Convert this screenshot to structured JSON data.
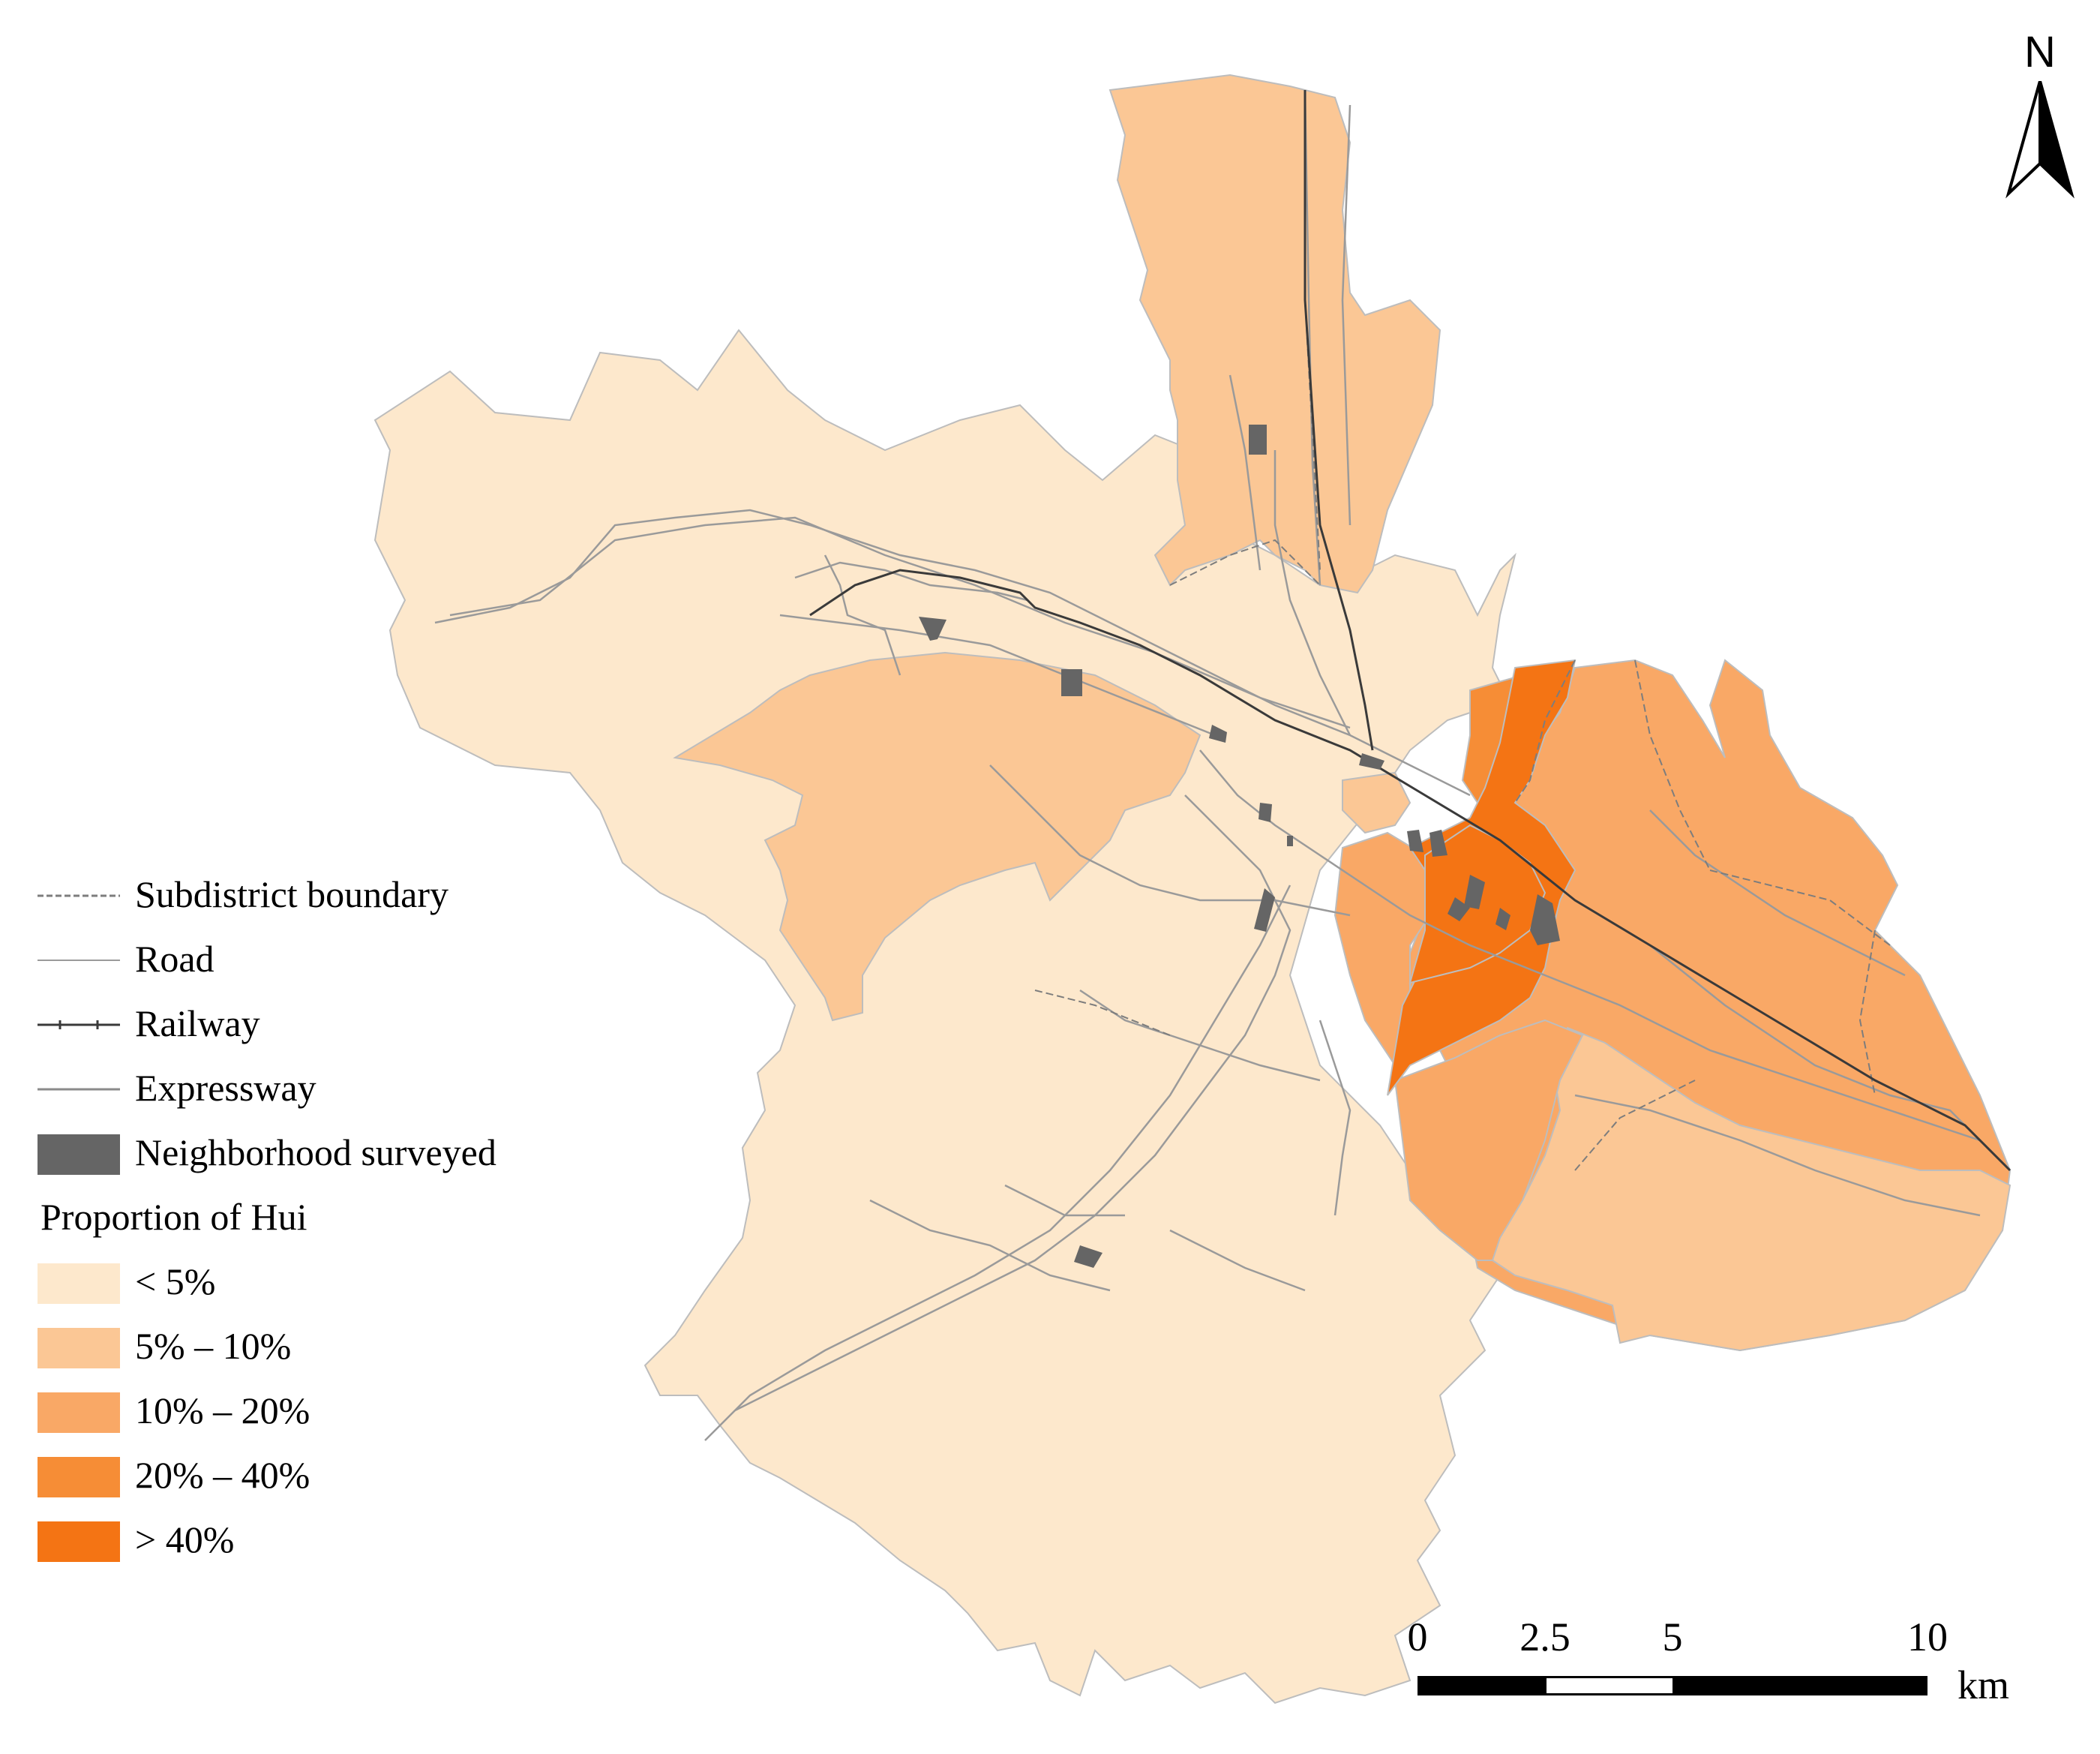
{
  "map": {
    "colors": {
      "lt5": "#fde8cc",
      "p5to10": "#fbc795",
      "p10to20": "#f9a866",
      "p20to40": "#f68d36",
      "gt40": "#f47414",
      "neighborhood": "#656565",
      "road": "#9a9a9a",
      "boundary": "#7d7d7d",
      "railway": "#3a3a3a"
    }
  },
  "legend": {
    "lines": [
      {
        "label": "Subdistrict boundary",
        "icon": "subdistrict-boundary-line"
      },
      {
        "label": "Road",
        "icon": "road-line"
      },
      {
        "label": "Railway",
        "icon": "railway-line"
      },
      {
        "label": "Expressway",
        "icon": "expressway-line"
      }
    ],
    "neighborhood": {
      "label": "Neighborhood surveyed",
      "color": "#656565"
    },
    "title": "Proportion of Hui",
    "classes": [
      {
        "label": "< 5%",
        "color": "#fde8cc"
      },
      {
        "label": "5% – 10%",
        "color": "#fbc795"
      },
      {
        "label": "10% – 20%",
        "color": "#f9a866"
      },
      {
        "label": "20% – 40%",
        "color": "#f68d36"
      },
      {
        "label": "> 40%",
        "color": "#f47414"
      }
    ]
  },
  "north_arrow": {
    "label": "N",
    "icon": "north-arrow-icon"
  },
  "scale_bar": {
    "ticks": [
      "0",
      "2.5",
      "5",
      "10"
    ],
    "unit": "km",
    "segment_colors": [
      "#000000",
      "#ffffff",
      "#000000",
      "#000000"
    ]
  }
}
